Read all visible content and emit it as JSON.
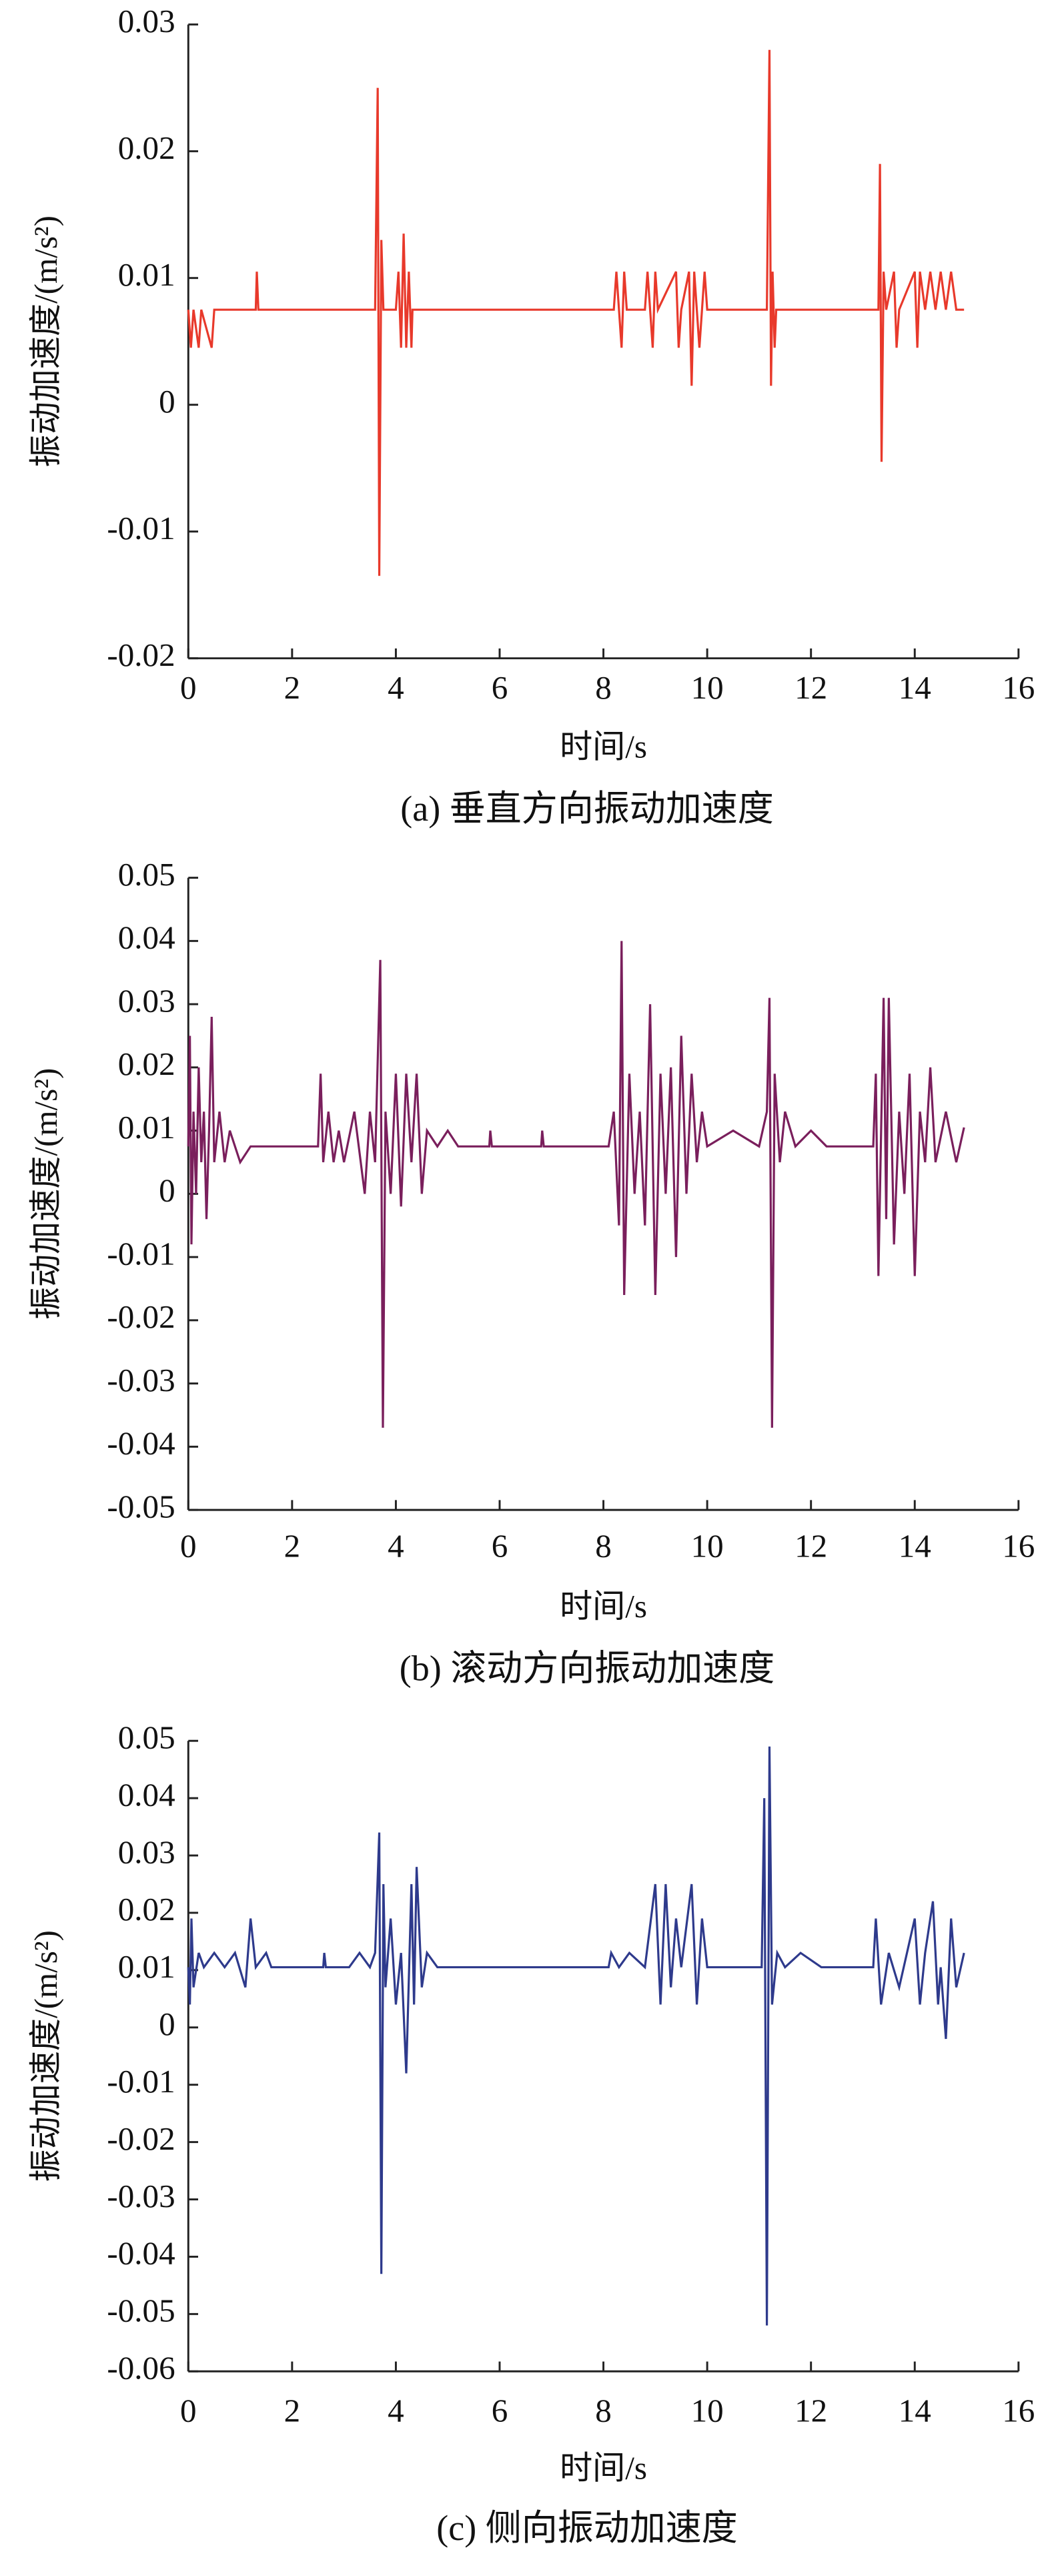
{
  "chart_data": [
    {
      "type": "line",
      "caption": "(a)  垂直方向振动加速度",
      "xlabel": "时间/s",
      "ylabel": "振动加速度/(m/s²)",
      "color": "#e8392b",
      "xlim": [
        0,
        16
      ],
      "xticks": [
        0,
        2,
        4,
        6,
        8,
        10,
        12,
        14,
        16
      ],
      "ylim": [
        -0.02,
        0.03
      ],
      "yticks": [
        -0.02,
        -0.01,
        0,
        0.01,
        0.02,
        0.03
      ],
      "x": [
        0,
        0.05,
        0.1,
        0.2,
        0.25,
        0.45,
        0.5,
        1.3,
        1.32,
        1.35,
        3.6,
        3.65,
        3.68,
        3.72,
        3.76,
        4.0,
        4.05,
        4.1,
        4.15,
        4.2,
        4.25,
        4.3,
        4.32,
        8.2,
        8.25,
        8.35,
        8.4,
        8.45,
        8.8,
        8.85,
        8.95,
        9.0,
        9.05,
        9.4,
        9.45,
        9.5,
        9.65,
        9.7,
        9.75,
        9.85,
        9.95,
        10.0,
        11.15,
        11.2,
        11.23,
        11.26,
        11.3,
        11.33,
        13.3,
        13.33,
        13.36,
        13.4,
        13.45,
        13.6,
        13.65,
        13.7,
        14.0,
        14.05,
        14.1,
        14.2,
        14.3,
        14.4,
        14.5,
        14.6,
        14.7,
        14.8,
        14.95
      ],
      "values": [
        0.0075,
        0.0045,
        0.0075,
        0.0045,
        0.0075,
        0.0045,
        0.0075,
        0.0075,
        0.0105,
        0.0075,
        0.0075,
        0.025,
        -0.0135,
        0.013,
        0.0075,
        0.0075,
        0.0105,
        0.0045,
        0.0135,
        0.0045,
        0.0105,
        0.0045,
        0.0075,
        0.0075,
        0.0105,
        0.0045,
        0.0105,
        0.0075,
        0.0075,
        0.0105,
        0.0045,
        0.0105,
        0.0075,
        0.0105,
        0.0045,
        0.0075,
        0.0105,
        0.0015,
        0.0105,
        0.0045,
        0.0105,
        0.0075,
        0.0075,
        0.028,
        0.0015,
        0.0105,
        0.0045,
        0.0075,
        0.0075,
        0.019,
        -0.0045,
        0.0105,
        0.0075,
        0.0105,
        0.0045,
        0.0075,
        0.0105,
        0.0045,
        0.0105,
        0.0075,
        0.0105,
        0.0075,
        0.0105,
        0.0075,
        0.0105,
        0.0075,
        0.0075
      ]
    },
    {
      "type": "line",
      "caption": "(b)  滚动方向振动加速度",
      "xlabel": "时间/s",
      "ylabel": "振动加速度/(m/s²)",
      "color": "#7a1f5c",
      "xlim": [
        0,
        16
      ],
      "xticks": [
        0,
        2,
        4,
        6,
        8,
        10,
        12,
        14,
        16
      ],
      "ylim": [
        -0.05,
        0.05
      ],
      "yticks": [
        -0.05,
        -0.04,
        -0.03,
        -0.02,
        -0.01,
        0,
        0.01,
        0.02,
        0.03,
        0.04,
        0.05
      ],
      "x": [
        0,
        0.03,
        0.06,
        0.1,
        0.15,
        0.2,
        0.25,
        0.3,
        0.35,
        0.4,
        0.45,
        0.5,
        0.6,
        0.7,
        0.8,
        1.0,
        1.2,
        1.5,
        2.5,
        2.55,
        2.6,
        2.7,
        2.8,
        2.9,
        3.0,
        3.2,
        3.4,
        3.5,
        3.6,
        3.7,
        3.75,
        3.8,
        3.9,
        4.0,
        4.1,
        4.2,
        4.3,
        4.4,
        4.5,
        4.6,
        4.8,
        5.0,
        5.2,
        5.8,
        5.82,
        5.85,
        6.8,
        6.82,
        6.85,
        8.1,
        8.2,
        8.3,
        8.35,
        8.4,
        8.5,
        8.6,
        8.7,
        8.8,
        8.9,
        9.0,
        9.1,
        9.2,
        9.3,
        9.4,
        9.5,
        9.6,
        9.7,
        9.8,
        9.9,
        10.0,
        10.5,
        11.0,
        11.15,
        11.2,
        11.25,
        11.3,
        11.4,
        11.5,
        11.7,
        12.0,
        12.3,
        13.2,
        13.25,
        13.3,
        13.4,
        13.45,
        13.5,
        13.6,
        13.7,
        13.8,
        13.9,
        14.0,
        14.1,
        14.2,
        14.3,
        14.4,
        14.6,
        14.8,
        14.95
      ],
      "values": [
        0.0075,
        0.025,
        -0.008,
        0.013,
        0.0,
        0.02,
        0.005,
        0.013,
        -0.004,
        0.01,
        0.028,
        0.005,
        0.013,
        0.005,
        0.01,
        0.005,
        0.0075,
        0.0075,
        0.0075,
        0.019,
        0.005,
        0.013,
        0.005,
        0.01,
        0.005,
        0.013,
        0.0,
        0.013,
        0.005,
        0.037,
        -0.037,
        0.013,
        0.0,
        0.019,
        -0.002,
        0.019,
        0.005,
        0.019,
        0.0,
        0.01,
        0.0075,
        0.01,
        0.0075,
        0.0075,
        0.01,
        0.0075,
        0.0075,
        0.01,
        0.0075,
        0.0075,
        0.013,
        -0.005,
        0.04,
        -0.016,
        0.019,
        0.0,
        0.013,
        -0.005,
        0.03,
        -0.016,
        0.019,
        0.0,
        0.02,
        -0.01,
        0.025,
        0.0,
        0.019,
        0.005,
        0.013,
        0.0075,
        0.01,
        0.0075,
        0.013,
        0.031,
        -0.037,
        0.019,
        0.005,
        0.013,
        0.0075,
        0.01,
        0.0075,
        0.0075,
        0.019,
        -0.013,
        0.031,
        -0.004,
        0.031,
        -0.008,
        0.013,
        0.0,
        0.019,
        -0.013,
        0.013,
        0.005,
        0.02,
        0.005,
        0.013,
        0.005,
        0.0105
      ]
    },
    {
      "type": "line",
      "caption": "(c)  侧向振动加速度",
      "xlabel": "时间/s",
      "ylabel": "振动加速度/(m/s²)",
      "color": "#2e3a8c",
      "xlim": [
        0,
        16
      ],
      "xticks": [
        0,
        2,
        4,
        6,
        8,
        10,
        12,
        14,
        16
      ],
      "ylim": [
        -0.06,
        0.05
      ],
      "yticks": [
        -0.06,
        -0.05,
        -0.04,
        -0.03,
        -0.02,
        -0.01,
        0,
        0.01,
        0.02,
        0.03,
        0.04,
        0.05
      ],
      "x": [
        0,
        0.03,
        0.06,
        0.1,
        0.2,
        0.3,
        0.5,
        0.7,
        0.9,
        1.1,
        1.2,
        1.3,
        1.5,
        1.6,
        2.6,
        2.62,
        2.65,
        3.1,
        3.3,
        3.5,
        3.6,
        3.68,
        3.72,
        3.76,
        3.8,
        3.9,
        4.0,
        4.1,
        4.2,
        4.3,
        4.35,
        4.4,
        4.5,
        4.6,
        4.8,
        5.0,
        8.1,
        8.15,
        8.3,
        8.5,
        8.8,
        9.0,
        9.1,
        9.2,
        9.3,
        9.4,
        9.5,
        9.7,
        9.8,
        9.9,
        10.0,
        11.05,
        11.1,
        11.15,
        11.2,
        11.25,
        11.35,
        11.5,
        11.8,
        12.2,
        13.2,
        13.25,
        13.35,
        13.5,
        13.7,
        14.0,
        14.1,
        14.2,
        14.35,
        14.45,
        14.5,
        14.6,
        14.7,
        14.8,
        14.95
      ],
      "values": [
        0.0105,
        0.004,
        0.019,
        0.007,
        0.013,
        0.0105,
        0.013,
        0.0105,
        0.013,
        0.007,
        0.019,
        0.0105,
        0.013,
        0.0105,
        0.0105,
        0.013,
        0.0105,
        0.0105,
        0.013,
        0.0105,
        0.013,
        0.034,
        -0.043,
        0.025,
        0.007,
        0.019,
        0.004,
        0.013,
        -0.008,
        0.025,
        0.004,
        0.028,
        0.007,
        0.013,
        0.0105,
        0.0105,
        0.0105,
        0.013,
        0.0105,
        0.013,
        0.0105,
        0.025,
        0.004,
        0.025,
        0.007,
        0.019,
        0.0105,
        0.025,
        0.004,
        0.019,
        0.0105,
        0.0105,
        0.04,
        -0.052,
        0.049,
        0.004,
        0.013,
        0.0105,
        0.013,
        0.0105,
        0.0105,
        0.019,
        0.004,
        0.013,
        0.007,
        0.019,
        0.004,
        0.013,
        0.022,
        0.004,
        0.0105,
        -0.002,
        0.019,
        0.007,
        0.013
      ]
    }
  ]
}
